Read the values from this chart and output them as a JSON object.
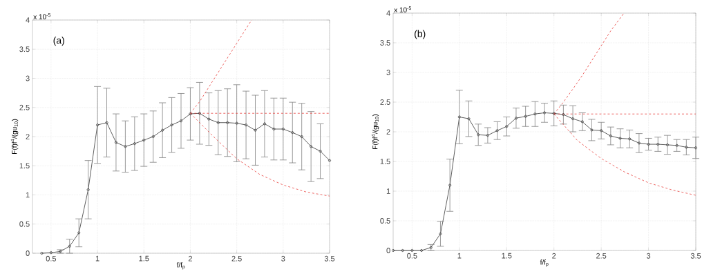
{
  "chart_data": [
    {
      "type": "line",
      "xlabel": "f/f$_{p}$",
      "ylabel": "F(f)f$^{4}$/(gu$_{10}$)",
      "annotations": [
        "(a)",
        "x 10$^{-5}$"
      ],
      "xlim": [
        0.3,
        3.5
      ],
      "ylim": [
        0,
        4
      ],
      "xticks": [
        0.5,
        1,
        1.5,
        2,
        2.5,
        3,
        3.5
      ],
      "yticks": [
        0,
        0.5,
        1,
        1.5,
        2,
        2.5,
        3,
        3.5,
        4
      ],
      "grid": true,
      "series": [
        {
          "color": "#333333",
          "marker": "circle",
          "line_style": "solid",
          "x": [
            0.4,
            0.5,
            0.6,
            0.7,
            0.8,
            0.9,
            1.0,
            1.1,
            1.2,
            1.3,
            1.4,
            1.5,
            1.6,
            1.7,
            1.8,
            1.9,
            2.0,
            2.1,
            2.2,
            2.3,
            2.4,
            2.5,
            2.6,
            2.7,
            2.8,
            2.9,
            3.0,
            3.1,
            3.2,
            3.3,
            3.4,
            3.5
          ],
          "values": [
            0,
            0.01,
            0.03,
            0.12,
            0.35,
            1.09,
            2.2,
            2.24,
            1.9,
            1.83,
            1.88,
            1.94,
            2.0,
            2.11,
            2.2,
            2.27,
            2.39,
            2.4,
            2.3,
            2.24,
            2.24,
            2.23,
            2.2,
            2.11,
            2.22,
            2.13,
            2.13,
            2.07,
            2.0,
            1.83,
            1.75,
            1.59
          ],
          "errors": [
            null,
            null,
            0.03,
            0.12,
            0.24,
            0.5,
            0.66,
            0.59,
            0.49,
            0.44,
            0.46,
            0.45,
            0.44,
            0.47,
            0.47,
            0.47,
            0.45,
            0.53,
            0.45,
            0.55,
            0.58,
            0.66,
            0.58,
            0.6,
            0.57,
            0.53,
            0.53,
            0.52,
            0.57,
            0.6,
            0.47,
            null
          ]
        },
        {
          "color": "#e8403c",
          "marker": "none",
          "line_style": "dashed",
          "x": [
            2.0,
            2.1,
            2.2,
            2.3,
            2.4,
            2.5,
            2.6,
            2.66
          ],
          "values": [
            2.4,
            2.6,
            2.85,
            3.1,
            3.35,
            3.6,
            3.85,
            4.0
          ]
        },
        {
          "color": "#e8403c",
          "marker": "none",
          "line_style": "dashed",
          "x": [
            2.0,
            3.5
          ],
          "values": [
            2.4,
            2.4
          ]
        },
        {
          "color": "#e8403c",
          "marker": "none",
          "line_style": "dashed",
          "x": [
            2.0,
            2.25,
            2.5,
            2.75,
            3.0,
            3.25,
            3.5
          ],
          "values": [
            2.4,
            2.0,
            1.62,
            1.35,
            1.17,
            1.05,
            0.98
          ]
        }
      ]
    },
    {
      "type": "line",
      "xlabel": "f/f$_{p}$",
      "ylabel": "F(f)f$^{4}$/(gu$_{10}$)",
      "annotations": [
        "(b)",
        "x 10$^{-5}$"
      ],
      "xlim": [
        0.3,
        3.5
      ],
      "ylim": [
        0,
        4
      ],
      "xticks": [
        0.5,
        1,
        1.5,
        2,
        2.5,
        3,
        3.5
      ],
      "yticks": [
        0,
        0.5,
        1,
        1.5,
        2,
        2.5,
        3,
        3.5,
        4
      ],
      "grid": true,
      "series": [
        {
          "color": "#333333",
          "marker": "circle",
          "line_style": "solid",
          "x": [
            0.3,
            0.4,
            0.5,
            0.6,
            0.7,
            0.8,
            0.9,
            1.0,
            1.1,
            1.2,
            1.3,
            1.4,
            1.5,
            1.6,
            1.7,
            1.8,
            1.9,
            2.0,
            2.1,
            2.2,
            2.3,
            2.4,
            2.5,
            2.6,
            2.7,
            2.8,
            2.9,
            3.0,
            3.1,
            3.2,
            3.3,
            3.4,
            3.5
          ],
          "values": [
            0,
            0,
            0,
            0,
            0.05,
            0.28,
            1.1,
            2.25,
            2.22,
            1.95,
            1.94,
            2.02,
            2.09,
            2.23,
            2.26,
            2.3,
            2.32,
            2.31,
            2.29,
            2.22,
            2.17,
            2.03,
            2.02,
            1.93,
            1.89,
            1.88,
            1.81,
            1.79,
            1.79,
            1.78,
            1.77,
            1.74,
            1.73
          ],
          "errors": [
            null,
            null,
            null,
            null,
            0.05,
            0.21,
            0.44,
            0.45,
            0.3,
            0.18,
            0.13,
            0.15,
            0.16,
            0.17,
            0.17,
            0.21,
            0.16,
            0.21,
            0.16,
            0.22,
            0.15,
            0.18,
            0.14,
            0.15,
            0.16,
            0.15,
            0.16,
            0.1,
            0.12,
            0.16,
            0.1,
            0.13,
            0.18
          ]
        },
        {
          "color": "#e8403c",
          "marker": "none",
          "line_style": "dashed",
          "x": [
            2.0,
            2.1,
            2.2,
            2.3,
            2.4,
            2.5,
            2.6,
            2.74
          ],
          "values": [
            2.3,
            2.5,
            2.72,
            2.95,
            3.2,
            3.45,
            3.7,
            4.0
          ]
        },
        {
          "color": "#e8403c",
          "marker": "none",
          "line_style": "dashed",
          "x": [
            2.0,
            3.5
          ],
          "values": [
            2.3,
            2.3
          ]
        },
        {
          "color": "#e8403c",
          "marker": "none",
          "line_style": "dashed",
          "x": [
            2.0,
            2.25,
            2.5,
            2.75,
            3.0,
            3.25,
            3.5
          ],
          "values": [
            2.3,
            1.85,
            1.55,
            1.32,
            1.14,
            1.02,
            0.93
          ]
        }
      ]
    }
  ]
}
